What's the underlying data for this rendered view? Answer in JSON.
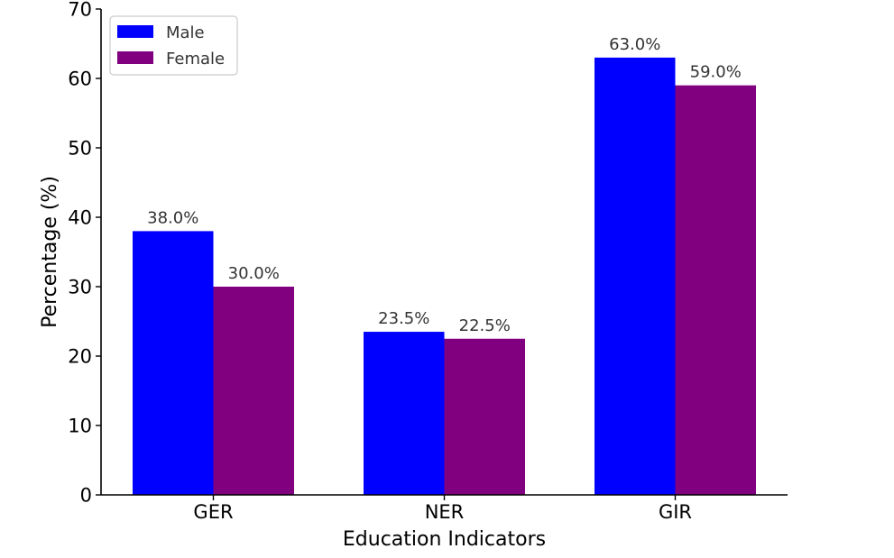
{
  "chart_data": {
    "type": "bar",
    "title": "",
    "xlabel": "Education Indicators",
    "ylabel": "Percentage (%)",
    "ylim": [
      0,
      70
    ],
    "yticks": [
      0,
      10,
      20,
      30,
      40,
      50,
      60,
      70
    ],
    "categories": [
      "GER",
      "NER",
      "GIR"
    ],
    "series": [
      {
        "name": "Male",
        "color": "#0000ff",
        "values": [
          38.0,
          23.5,
          63.0
        ],
        "labels": [
          "38.0%",
          "23.5%",
          "63.0%"
        ]
      },
      {
        "name": "Female",
        "color": "#800080",
        "values": [
          30.0,
          22.5,
          59.0
        ],
        "labels": [
          "30.0%",
          "22.5%",
          "59.0%"
        ]
      }
    ],
    "grid": false,
    "legend": "top-left"
  }
}
